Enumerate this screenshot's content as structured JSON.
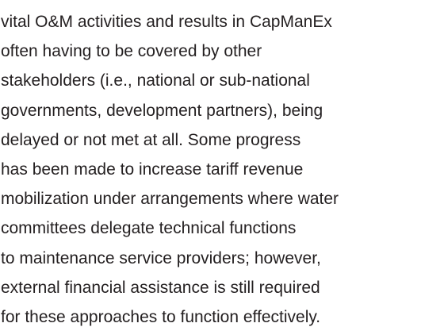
{
  "paragraph": {
    "lines": [
      "vital O&M activities and results in CapManEx",
      "often having to be covered by other",
      "stakeholders (i.e., national or sub-national",
      "governments, development partners), being",
      "delayed or not met at all. Some progress",
      "has been made to increase tariff revenue",
      "mobilization under arrangements where water",
      "committees delegate technical functions",
      "to maintenance service providers; however,",
      "external financial assistance is still required",
      "for these approaches to function effectively."
    ]
  }
}
